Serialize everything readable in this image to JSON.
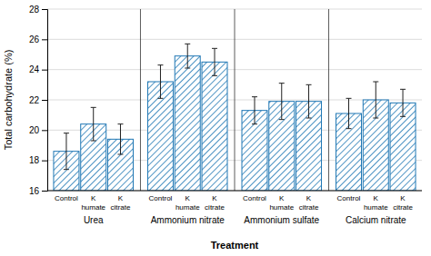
{
  "chart_data": {
    "type": "bar",
    "categories": [
      "Urea",
      "Ammonium nitrate",
      "Ammonium sulfate",
      "Calcium nitrate"
    ],
    "series": [
      {
        "label_lines": [
          "Control"
        ],
        "values": [
          18.6,
          23.2,
          21.3,
          21.1
        ],
        "errors": [
          1.2,
          1.1,
          0.9,
          1.0
        ]
      },
      {
        "label_lines": [
          "K",
          "humate"
        ],
        "values": [
          20.4,
          24.9,
          21.9,
          22.0
        ],
        "errors": [
          1.1,
          0.8,
          1.2,
          1.2
        ]
      },
      {
        "label_lines": [
          "K",
          "citrate"
        ],
        "values": [
          19.4,
          24.5,
          21.9,
          21.8
        ],
        "errors": [
          1.0,
          0.9,
          1.1,
          0.9
        ]
      }
    ],
    "x_label": "Treatment",
    "y_label": "Total carbohydrate (%)",
    "ylim": [
      16,
      28
    ],
    "yticks": [
      16,
      18,
      20,
      22,
      24,
      26,
      28
    ],
    "grid": true
  }
}
